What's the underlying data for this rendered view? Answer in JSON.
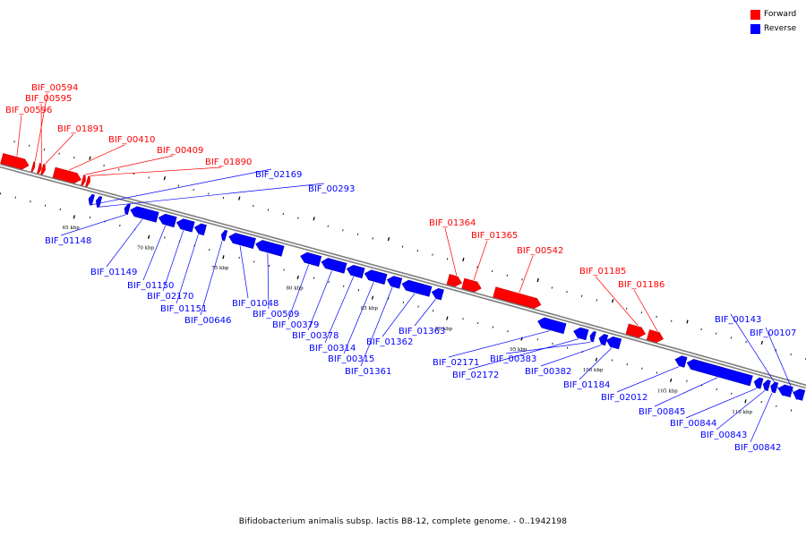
{
  "legend": {
    "forward": {
      "label": "Forward",
      "color": "#ff0000"
    },
    "reverse": {
      "label": "Reverse",
      "color": "#0000ff"
    }
  },
  "caption": "Bifidobacterium animalis subsp. lactis BB-12, complete genome. - 0..1942198",
  "colors": {
    "forward": "#ff0000",
    "reverse": "#0000ff",
    "backbone": "#7f7f7f",
    "ticks": "#000000"
  },
  "axis": {
    "start_kbp": 59.5,
    "end_kbp": 113.5,
    "major_tick_labels": [
      "65 kbp",
      "70 kbp",
      "75 kbp",
      "80 kbp",
      "85 kbp",
      "90 kbp",
      "95 kbp",
      "100 kbp",
      "105 kbp",
      "110 kbp"
    ],
    "major_tick_values": [
      65,
      70,
      75,
      80,
      85,
      90,
      95,
      100,
      105,
      110
    ]
  },
  "genes": [
    {
      "name": "BIF_00594",
      "strand": "forward",
      "start_kbp": 61.55,
      "end_kbp": 61.7
    },
    {
      "name": "BIF_00595",
      "strand": "forward",
      "start_kbp": 61.95,
      "end_kbp": 62.15
    },
    {
      "name": "BIF_00596",
      "strand": "forward",
      "start_kbp": 59.5,
      "end_kbp": 61.3
    },
    {
      "name": "BIF_01891",
      "strand": "forward",
      "start_kbp": 62.2,
      "end_kbp": 62.4
    },
    {
      "name": "BIF_00410",
      "strand": "forward",
      "start_kbp": 63.0,
      "end_kbp": 64.8
    },
    {
      "name": "BIF_00409",
      "strand": "forward",
      "start_kbp": 64.9,
      "end_kbp": 65.1
    },
    {
      "name": "BIF_01890",
      "strand": "forward",
      "start_kbp": 65.2,
      "end_kbp": 65.4
    },
    {
      "name": "BIF_02169",
      "strand": "reverse",
      "start_kbp": 65.6,
      "end_kbp": 65.9
    },
    {
      "name": "BIF_00293",
      "strand": "reverse",
      "start_kbp": 66.1,
      "end_kbp": 66.4
    },
    {
      "name": "BIF_01148",
      "strand": "reverse",
      "start_kbp": 68.0,
      "end_kbp": 68.3
    },
    {
      "name": "BIF_01149",
      "strand": "reverse",
      "start_kbp": 68.4,
      "end_kbp": 70.2
    },
    {
      "name": "BIF_01150",
      "strand": "reverse",
      "start_kbp": 70.3,
      "end_kbp": 71.4
    },
    {
      "name": "BIF_02170",
      "strand": "reverse",
      "start_kbp": 71.5,
      "end_kbp": 72.6
    },
    {
      "name": "BIF_01151",
      "strand": "reverse",
      "start_kbp": 72.7,
      "end_kbp": 73.4
    },
    {
      "name": "BIF_00646",
      "strand": "reverse",
      "start_kbp": 74.5,
      "end_kbp": 74.8
    },
    {
      "name": "BIF_01048",
      "strand": "reverse",
      "start_kbp": 75.0,
      "end_kbp": 76.7
    },
    {
      "name": "BIF_00509",
      "strand": "reverse",
      "start_kbp": 76.8,
      "end_kbp": 78.6
    },
    {
      "name": "BIF_00379",
      "strand": "reverse",
      "start_kbp": 79.8,
      "end_kbp": 81.1
    },
    {
      "name": "BIF_00378",
      "strand": "reverse",
      "start_kbp": 81.2,
      "end_kbp": 82.8
    },
    {
      "name": "BIF_00314",
      "strand": "reverse",
      "start_kbp": 82.9,
      "end_kbp": 84.0
    },
    {
      "name": "BIF_00315",
      "strand": "reverse",
      "start_kbp": 84.1,
      "end_kbp": 85.5
    },
    {
      "name": "BIF_01361",
      "strand": "reverse",
      "start_kbp": 85.6,
      "end_kbp": 86.5
    },
    {
      "name": "BIF_01362",
      "strand": "reverse",
      "start_kbp": 86.6,
      "end_kbp": 88.5
    },
    {
      "name": "BIF_01363",
      "strand": "reverse",
      "start_kbp": 88.6,
      "end_kbp": 89.3
    },
    {
      "name": "BIF_01364",
      "strand": "forward",
      "start_kbp": 89.4,
      "end_kbp": 90.3
    },
    {
      "name": "BIF_01365",
      "strand": "forward",
      "start_kbp": 90.4,
      "end_kbp": 91.6
    },
    {
      "name": "BIF_00542",
      "strand": "forward",
      "start_kbp": 92.5,
      "end_kbp": 95.6
    },
    {
      "name": "BIF_02171",
      "strand": "reverse",
      "start_kbp": 95.7,
      "end_kbp": 97.5
    },
    {
      "name": "BIF_02172",
      "strand": "reverse",
      "start_kbp": 98.1,
      "end_kbp": 99.0
    },
    {
      "name": "BIF_00383",
      "strand": "reverse",
      "start_kbp": 99.2,
      "end_kbp": 99.5
    },
    {
      "name": "BIF_00382",
      "strand": "reverse",
      "start_kbp": 99.8,
      "end_kbp": 100.3
    },
    {
      "name": "BIF_01184",
      "strand": "reverse",
      "start_kbp": 100.3,
      "end_kbp": 101.2
    },
    {
      "name": "BIF_01185",
      "strand": "forward",
      "start_kbp": 101.4,
      "end_kbp": 102.6
    },
    {
      "name": "BIF_01186",
      "strand": "forward",
      "start_kbp": 102.8,
      "end_kbp": 103.8
    },
    {
      "name": "BIF_02012",
      "strand": "reverse",
      "start_kbp": 104.9,
      "end_kbp": 105.6
    },
    {
      "name": "BIF_00845",
      "strand": "reverse",
      "start_kbp": 105.7,
      "end_kbp": 110.0
    },
    {
      "name": "BIF_00844",
      "strand": "reverse",
      "start_kbp": 110.2,
      "end_kbp": 110.7
    },
    {
      "name": "BIF_00843",
      "strand": "reverse",
      "start_kbp": 110.8,
      "end_kbp": 111.2
    },
    {
      "name": "BIF_00842",
      "strand": "reverse",
      "start_kbp": 111.3,
      "end_kbp": 111.7
    },
    {
      "name": "BIF_00143",
      "strand": "reverse",
      "start_kbp": 111.8,
      "end_kbp": 112.7
    },
    {
      "name": "BIF_00107",
      "strand": "reverse",
      "start_kbp": 112.8,
      "end_kbp": 113.5
    }
  ]
}
